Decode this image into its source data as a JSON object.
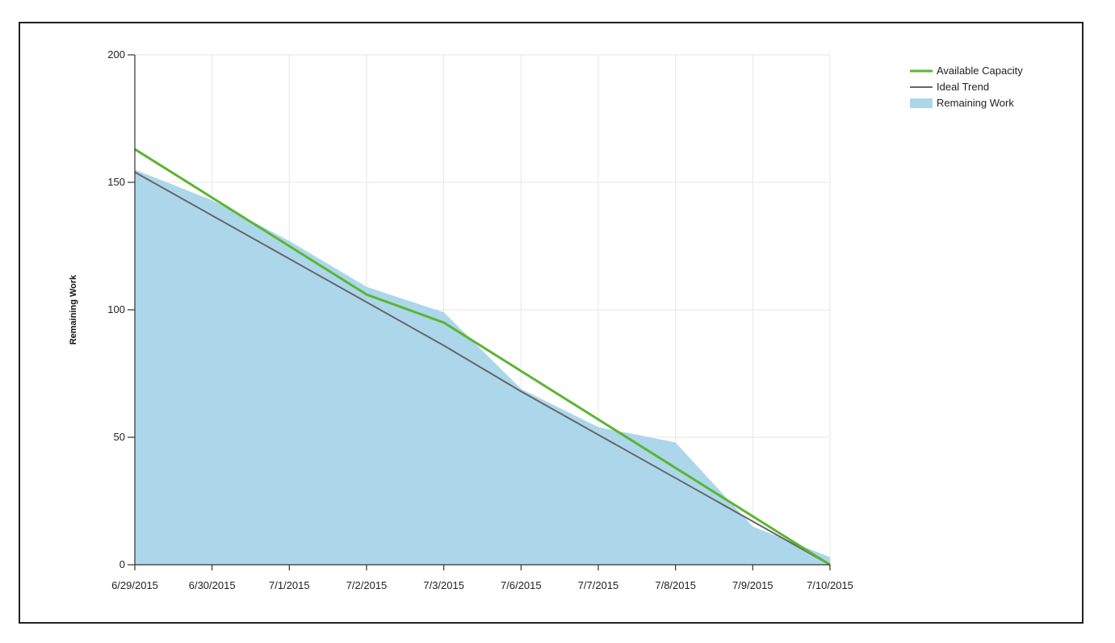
{
  "chart_data": {
    "type": "line",
    "title": "",
    "ylabel": "Remaining Work",
    "xlabel": "",
    "ylim": [
      0,
      200
    ],
    "yticks": [
      0,
      50,
      100,
      150,
      200
    ],
    "grid": true,
    "legend_position": "top-right",
    "categories": [
      "6/29/2015",
      "6/30/2015",
      "7/1/2015",
      "7/2/2015",
      "7/3/2015",
      "7/6/2015",
      "7/7/2015",
      "7/8/2015",
      "7/9/2015",
      "7/10/2015"
    ],
    "series": [
      {
        "name": "Available Capacity",
        "type": "line",
        "color": "#5cb531",
        "values": [
          163,
          144,
          125,
          106,
          95,
          76,
          57,
          38,
          19,
          0
        ]
      },
      {
        "name": "Ideal Trend",
        "type": "line",
        "color": "#666666",
        "values": [
          154,
          137,
          120,
          103,
          86,
          68,
          51,
          34,
          17,
          0
        ]
      },
      {
        "name": "Remaining Work",
        "type": "area",
        "color": "#acd7ea",
        "values": [
          155,
          143,
          127,
          109,
          99,
          69,
          54,
          48,
          15,
          3
        ]
      }
    ]
  }
}
